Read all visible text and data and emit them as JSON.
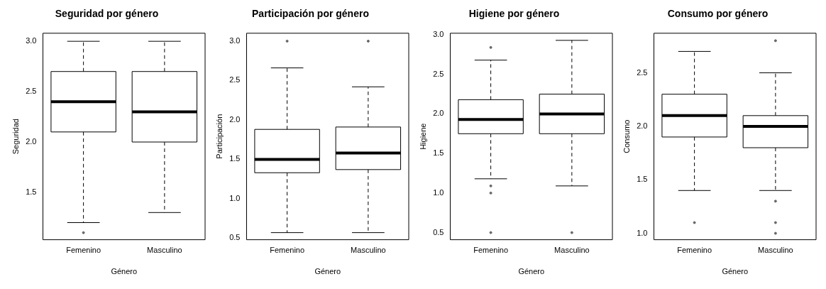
{
  "chart_data": [
    {
      "type": "box",
      "title": "Seguridad por género",
      "xlabel": "Género",
      "ylabel": "Seguridad",
      "categories": [
        "Femenino",
        "Masculino"
      ],
      "ylim": [
        1.03,
        3.08
      ],
      "yticks": [
        1.5,
        {
          "value": 2,
          "label": "2.0"
        },
        2.5,
        {
          "value": 3,
          "label": "3.0"
        }
      ],
      "color": "#000000",
      "boxes": [
        {
          "low": 1.2,
          "q1": 2.1,
          "median": 2.4,
          "q3": 2.7,
          "high": 3.0,
          "outliers": [
            1.1
          ]
        },
        {
          "low": 1.3,
          "q1": 2.0,
          "median": 2.3,
          "q3": 2.7,
          "high": 3.0
        }
      ]
    },
    {
      "type": "box",
      "title": "Participación por género",
      "xlabel": "Género",
      "ylabel": "Participación",
      "categories": [
        "Femenino",
        "Masculino"
      ],
      "ylim": [
        0.48,
        3.1
      ],
      "yticks": [
        0.5,
        {
          "value": 1,
          "label": "1.0"
        },
        1.5,
        {
          "value": 2,
          "label": "2.0"
        },
        2.5,
        {
          "value": 3,
          "label": "3.0"
        }
      ],
      "color": "#000000",
      "boxes": [
        {
          "low": 0.57,
          "q1": 1.33,
          "median": 1.5,
          "q3": 1.88,
          "high": 2.66,
          "outliers": [
            3.0
          ]
        },
        {
          "low": 0.57,
          "q1": 1.37,
          "median": 1.58,
          "q3": 1.91,
          "high": 2.42,
          "outliers": [
            3.0
          ]
        }
      ]
    },
    {
      "type": "box",
      "title": "Higiene por género",
      "xlabel": "Género",
      "ylabel": "Higiene",
      "categories": [
        "Femenino",
        "Masculino"
      ],
      "ylim": [
        0.41,
        3.02
      ],
      "yticks": [
        0.5,
        {
          "value": 1,
          "label": "1.0"
        },
        1.5,
        {
          "value": 2,
          "label": "2.0"
        },
        2.5,
        {
          "value": 3,
          "label": "3.0"
        }
      ],
      "color": "#000000",
      "boxes": [
        {
          "low": 1.18,
          "q1": 1.75,
          "median": 1.93,
          "q3": 2.18,
          "high": 2.68,
          "outliers": [
            2.84,
            1.09,
            1.0,
            0.5
          ]
        },
        {
          "low": 1.09,
          "q1": 1.75,
          "median": 2.0,
          "q3": 2.25,
          "high": 2.93,
          "outliers": [
            0.5
          ]
        }
      ]
    },
    {
      "type": "box",
      "title": "Consumo por género",
      "xlabel": "Género",
      "ylabel": "Consumo",
      "categories": [
        "Femenino",
        "Masculino"
      ],
      "ylim": [
        0.94,
        2.87
      ],
      "yticks": [
        {
          "value": 1,
          "label": "1.0"
        },
        1.5,
        {
          "value": 2,
          "label": "2.0"
        },
        2.5
      ],
      "color": "#000000",
      "boxes": [
        {
          "low": 1.4,
          "q1": 1.9,
          "median": 2.1,
          "q3": 2.3,
          "high": 2.7,
          "outliers": [
            1.1
          ]
        },
        {
          "low": 1.4,
          "q1": 1.8,
          "median": 2.0,
          "q3": 2.1,
          "high": 2.5,
          "outliers": [
            2.8,
            1.3,
            1.1,
            1.0
          ]
        }
      ]
    }
  ]
}
